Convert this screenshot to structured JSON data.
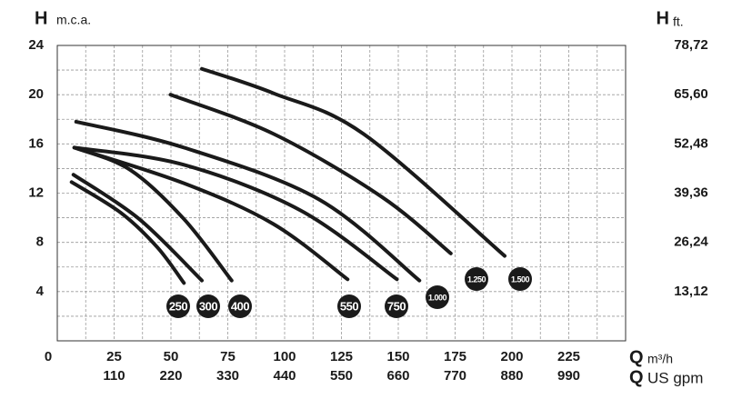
{
  "chart_data": {
    "type": "line",
    "ylabel": "H",
    "ylabel_unit": "m.c.a.",
    "y2label": "H",
    "y2label_unit": "ft.",
    "xlabel": "Q",
    "xlabel_unit": "m³/h",
    "x2label": "Q",
    "x2label_unit": "US gpm",
    "xlim": [
      0,
      250
    ],
    "xticks": [
      0,
      25,
      50,
      75,
      100,
      125,
      150,
      175,
      200,
      225
    ],
    "x_minor_ticks": [
      12.5,
      37.5,
      62.5,
      87.5,
      112.5,
      137.5,
      162.5,
      187.5,
      212.5,
      237.5
    ],
    "x2lim": [
      0,
      1100
    ],
    "x2ticks": [
      110,
      220,
      330,
      440,
      550,
      660,
      770,
      880,
      990
    ],
    "ylim": [
      0,
      24
    ],
    "yticks": [
      4,
      8,
      12,
      16,
      20,
      24
    ],
    "y_minor_ticks": [
      2,
      6,
      10,
      14,
      18,
      22
    ],
    "y2lim": [
      0,
      78.72
    ],
    "y2ticks": [
      {
        "value": 13.12,
        "label": "13,12"
      },
      {
        "value": 26.24,
        "label": "26,24"
      },
      {
        "value": 39.36,
        "label": "39,36"
      },
      {
        "value": 52.48,
        "label": "52,48"
      },
      {
        "value": 65.6,
        "label": "65,60"
      },
      {
        "value": 78.72,
        "label": "78,72"
      }
    ],
    "grid": true,
    "series": [
      {
        "name": "250",
        "color": "#1a1a1a",
        "x": [
          6.3,
          28,
          44,
          55.7
        ],
        "values": [
          12.9,
          10.4,
          7.6,
          4.7
        ]
      },
      {
        "name": "300",
        "color": "#1a1a1a",
        "x": [
          7.1,
          36,
          63.6
        ],
        "values": [
          13.5,
          9.9,
          4.9
        ]
      },
      {
        "name": "400",
        "color": "#1a1a1a",
        "x": [
          7.5,
          32,
          55.7,
          76.7
        ],
        "values": [
          15.7,
          13.9,
          9.9,
          4.9
        ]
      },
      {
        "name": "550",
        "color": "#1a1a1a",
        "x": [
          7.5,
          55.7,
          95,
          127.7
        ],
        "values": [
          15.7,
          12.8,
          9.5,
          5.0
        ]
      },
      {
        "name": "750",
        "color": "#1a1a1a",
        "x": [
          7.5,
          55.7,
          107,
          149.4
        ],
        "values": [
          15.7,
          14.3,
          10.6,
          5.0
        ]
      },
      {
        "name": "1.000",
        "color": "#1a1a1a",
        "x": [
          8.3,
          55.7,
          115,
          159.3
        ],
        "values": [
          17.8,
          15.7,
          11.5,
          4.9
        ]
      },
      {
        "name": "1.250",
        "color": "#1a1a1a",
        "x": [
          49.8,
          95.3,
          142.7,
          173.1
        ],
        "values": [
          20.0,
          16.8,
          11.7,
          7.1
        ]
      },
      {
        "name": "1.500",
        "color": "#1a1a1a",
        "x": [
          63.6,
          95.3,
          134.8,
          196.8
        ],
        "values": [
          22.1,
          20.1,
          16.8,
          6.9
        ]
      }
    ]
  }
}
